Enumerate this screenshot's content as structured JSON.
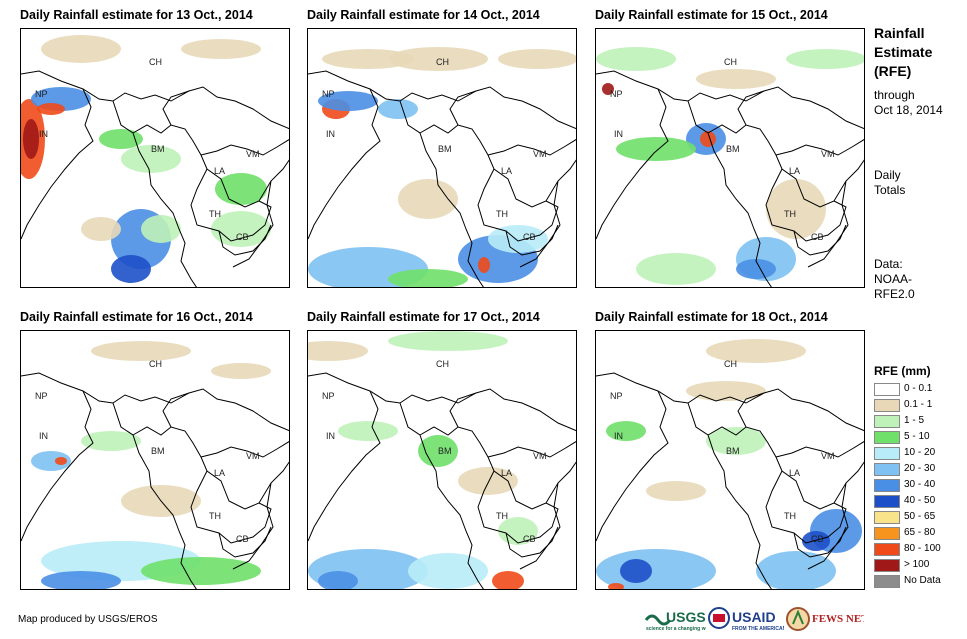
{
  "panels": [
    {
      "title": "Daily Rainfall estimate for 13 Oct., 2014"
    },
    {
      "title": "Daily Rainfall estimate for 14 Oct., 2014"
    },
    {
      "title": "Daily Rainfall estimate for 15 Oct., 2014"
    },
    {
      "title": "Daily Rainfall estimate for 16 Oct., 2014"
    },
    {
      "title": "Daily Rainfall estimate for 17 Oct., 2014"
    },
    {
      "title": "Daily Rainfall estimate for 18 Oct., 2014"
    }
  ],
  "country_labels": [
    "CH",
    "NP",
    "IN",
    "BM",
    "VM",
    "LA",
    "TH",
    "CB"
  ],
  "sidebar": {
    "title_lines": [
      "Rainfall",
      "Estimate",
      "(RFE)"
    ],
    "through": "through",
    "date": "Oct 18, 2014",
    "period_lines": [
      "Daily",
      "Totals"
    ],
    "data_lines": [
      "Data:",
      "NOAA-",
      "RFE2.0"
    ]
  },
  "legend": {
    "title": "RFE (mm)",
    "items": [
      {
        "label": "0 - 0.1",
        "color": "#ffffff"
      },
      {
        "label": "0.1 - 1",
        "color": "#e8d8b8"
      },
      {
        "label": "1 - 5",
        "color": "#bff2b8"
      },
      {
        "label": "5 - 10",
        "color": "#6fe06a"
      },
      {
        "label": "10 - 20",
        "color": "#b8ecf8"
      },
      {
        "label": "20 - 30",
        "color": "#7ec1f2"
      },
      {
        "label": "30 - 40",
        "color": "#4a8fe6"
      },
      {
        "label": "40 - 50",
        "color": "#1d50c8"
      },
      {
        "label": "50 - 65",
        "color": "#f8e38a"
      },
      {
        "label": "65 - 80",
        "color": "#f7941d"
      },
      {
        "label": "80 - 100",
        "color": "#f04a1a"
      },
      {
        "label": "> 100",
        "color": "#a01818"
      },
      {
        "label": "No Data",
        "color": "#8c8c8c"
      }
    ]
  },
  "footer": {
    "credit": "Map produced by USGS/EROS",
    "logos": [
      "USGS",
      "USAID",
      "FEWS NET"
    ]
  }
}
